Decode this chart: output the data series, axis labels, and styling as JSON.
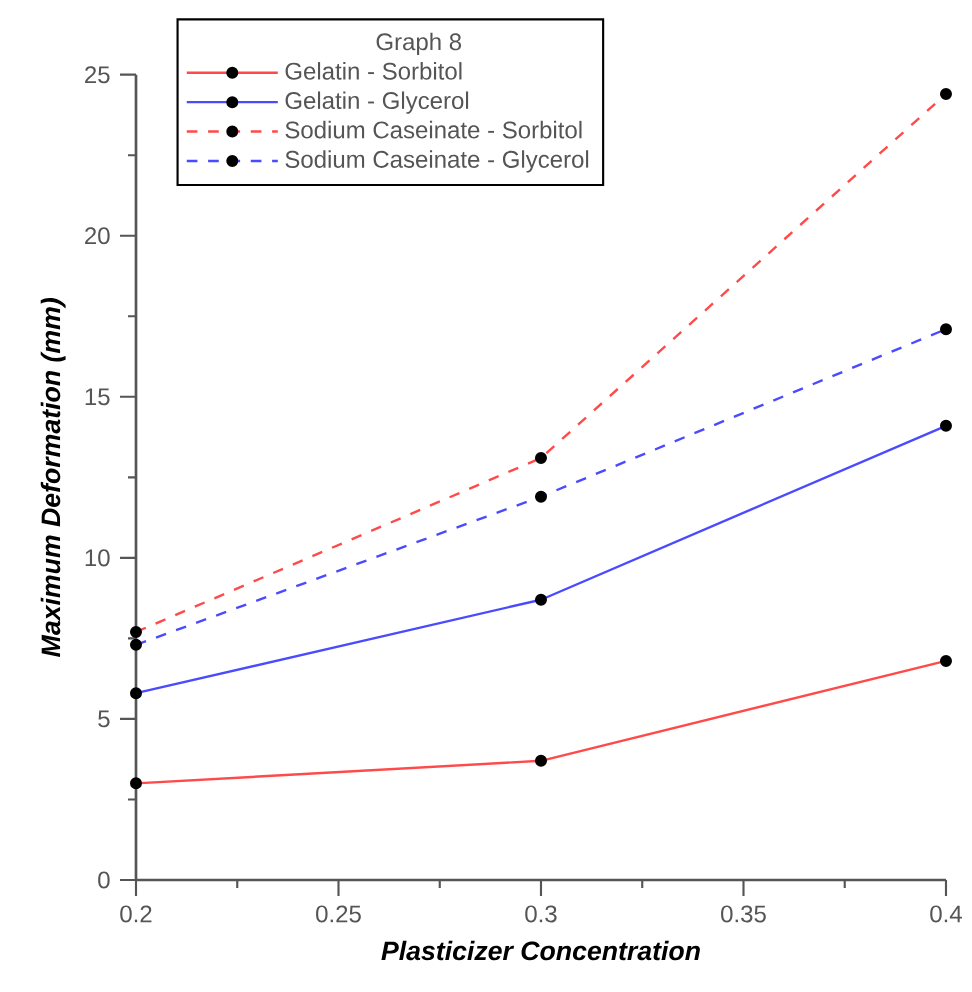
{
  "chart_data": {
    "type": "line",
    "xlabel": "Plasticizer Concentration",
    "ylabel": "Maximum Deformation (mm)",
    "legend_title": "Graph 8",
    "legend": "top left",
    "marker": "circle",
    "grid": false,
    "x": [
      0.2,
      0.3,
      0.4
    ],
    "xlim": [
      0.2,
      0.4
    ],
    "xticks": [
      0.2,
      0.25,
      0.3,
      0.35,
      0.4
    ],
    "ylim": [
      0,
      25
    ],
    "yticks": [
      0,
      5,
      10,
      15,
      20,
      25
    ],
    "series": [
      {
        "name": "Gelatin - Sorbitol",
        "color": "#ff4a4a",
        "line_style": "solid",
        "values": [
          3.0,
          3.7,
          6.8
        ]
      },
      {
        "name": "Gelatin - Glycerol",
        "color": "#4a4aff",
        "line_style": "solid",
        "values": [
          5.8,
          8.7,
          14.1
        ]
      },
      {
        "name": "Sodium Caseinate - Sorbitol",
        "color": "#ff4a4a",
        "line_style": "dashed",
        "values": [
          7.7,
          13.1,
          24.4
        ]
      },
      {
        "name": "Sodium Caseinate - Glycerol",
        "color": "#4a4aff",
        "line_style": "dashed",
        "values": [
          7.3,
          11.9,
          17.1
        ]
      }
    ]
  }
}
